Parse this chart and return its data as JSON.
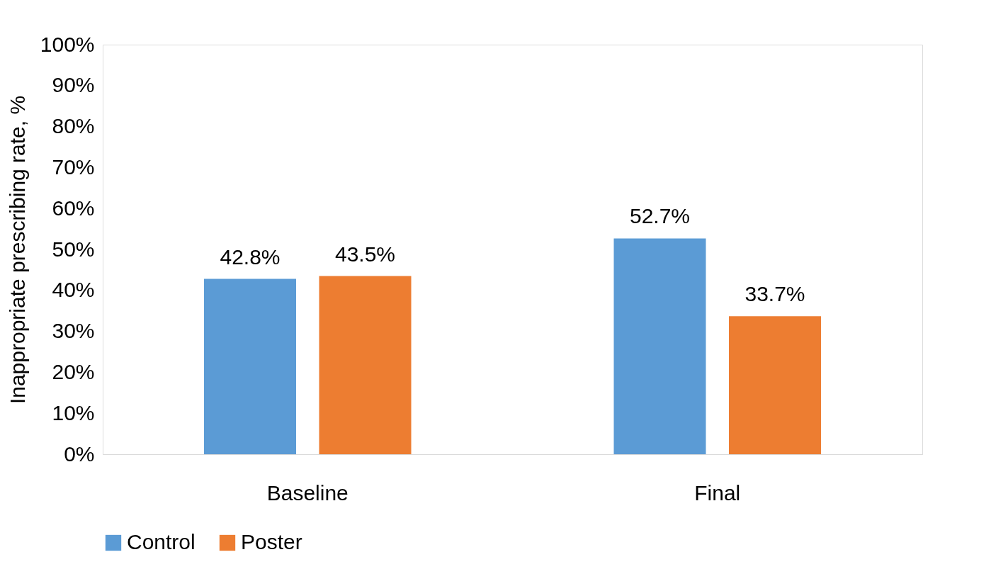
{
  "chart_data": {
    "type": "bar",
    "ylabel": "Inappropriate prescribing rate, %",
    "categories": [
      "Baseline",
      "Final"
    ],
    "series": [
      {
        "name": "Control",
        "color": "#5b9bd5",
        "values": [
          42.8,
          52.7
        ],
        "value_labels": [
          "42.8%",
          "52.7%"
        ]
      },
      {
        "name": "Poster",
        "color": "#ed7d31",
        "values": [
          43.5,
          33.7
        ],
        "value_labels": [
          "43.5%",
          "33.7%"
        ]
      }
    ],
    "ylim": [
      0,
      100
    ],
    "yticks": [
      {
        "value": 0,
        "label": "0%"
      },
      {
        "value": 10,
        "label": "10%"
      },
      {
        "value": 20,
        "label": "20%"
      },
      {
        "value": 30,
        "label": "30%"
      },
      {
        "value": 40,
        "label": "40%"
      },
      {
        "value": 50,
        "label": "50%"
      },
      {
        "value": 60,
        "label": "60%"
      },
      {
        "value": 70,
        "label": "70%"
      },
      {
        "value": 80,
        "label": "80%"
      },
      {
        "value": 90,
        "label": "90%"
      },
      {
        "value": 100,
        "label": "100%"
      }
    ],
    "grid": false,
    "legend": "bottom"
  }
}
